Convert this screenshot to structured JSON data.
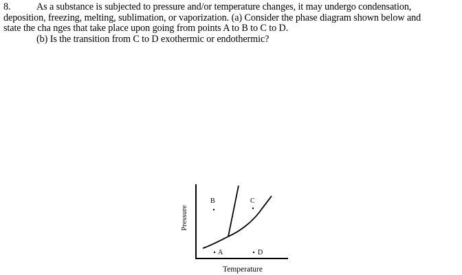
{
  "question": {
    "number": "8.",
    "line1": "As a substance is subjected to pressure and/or temperature changes, it may undergo condensation,",
    "line2": "deposition, freezing, melting, sublimation, or vaporization.   (a) Consider the phase diagram shown below and",
    "line3": "state the cha nges that take place upon going from points A to B to C to D.",
    "line4": "(b) Is the transition from C to D exothermic or endothermic?"
  },
  "diagram": {
    "y_axis_label": "Pressure",
    "x_axis_label": "Temperature",
    "points": [
      {
        "label": "A"
      },
      {
        "label": "B"
      },
      {
        "label": "C"
      },
      {
        "label": "D"
      }
    ]
  }
}
